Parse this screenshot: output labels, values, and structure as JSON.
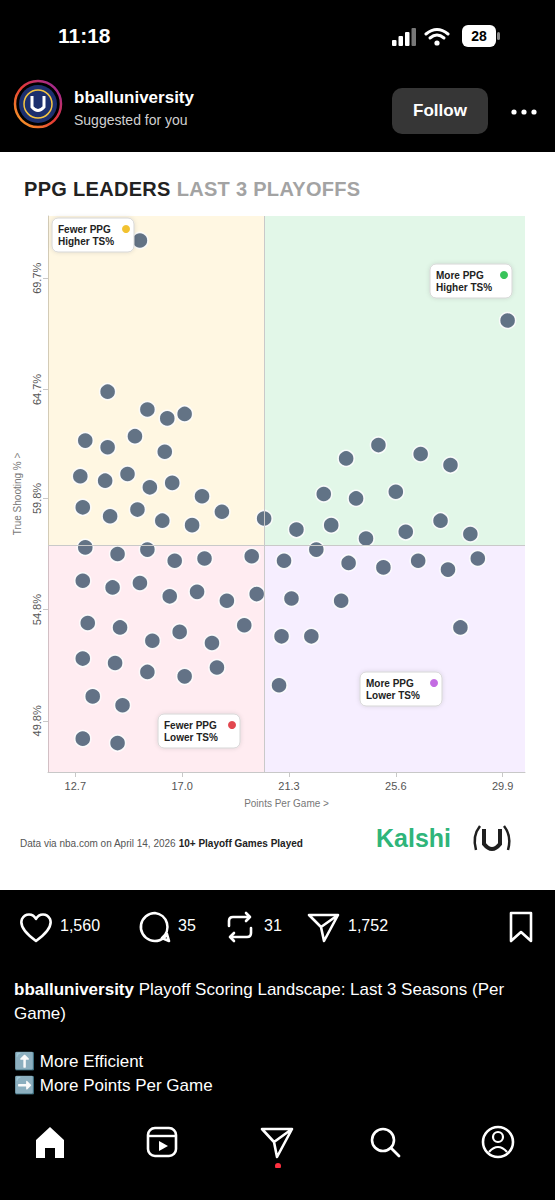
{
  "screen": {
    "status_bar": {
      "time": "11:18",
      "battery": "28"
    },
    "post_header": {
      "account": "bballuniversity",
      "subtitle": "Suggested for you",
      "button": "Follow"
    },
    "actions": {
      "likes": "1,560",
      "comments": "35",
      "reposts": "31",
      "shares": "1,752"
    },
    "caption": {
      "account": "bballuniversity",
      "text": "Playoff Scoring Landscape: Last 3 Seasons (Per Game)",
      "lines": [
        "⬆️ More Efficient",
        "➡️ More Points Per Game"
      ]
    }
  },
  "chart_data": {
    "type": "scatter",
    "title": "PPG LEADERS",
    "subtitle": "LAST 3 PLAYOFFS",
    "x_label": "Points Per Game >",
    "y_label": "True Shooting % >",
    "x": [
      15.3,
      30.1,
      14.0,
      15.6,
      16.4,
      17.1,
      13.1,
      14.0,
      15.1,
      16.3,
      12.9,
      13.9,
      14.8,
      15.7,
      16.6,
      17.8,
      13.0,
      14.1,
      15.2,
      16.2,
      17.4,
      18.6,
      13.1,
      14.4,
      15.6,
      16.7,
      17.9,
      13.0,
      14.2,
      15.3,
      16.5,
      17.6,
      18.8,
      13.2,
      14.5,
      15.8,
      16.9,
      18.2,
      19.5,
      13.0,
      14.3,
      15.6,
      17.1,
      18.4,
      13.4,
      14.6,
      13.0,
      14.4,
      23.6,
      24.9,
      26.6,
      27.8,
      22.7,
      24.0,
      25.6,
      20.3,
      21.6,
      23.0,
      24.4,
      26.0,
      27.4,
      28.6,
      19.8,
      21.1,
      22.4,
      23.7,
      25.1,
      26.5,
      27.7,
      28.9,
      20.0,
      21.4,
      23.4,
      28.2,
      21.0,
      22.2,
      20.9
    ],
    "values": [
      71.4,
      67.8,
      64.6,
      63.8,
      63.4,
      63.6,
      62.4,
      62.1,
      62.6,
      61.9,
      60.8,
      60.6,
      60.9,
      60.3,
      60.5,
      59.9,
      59.4,
      59.0,
      59.3,
      58.8,
      58.6,
      59.2,
      57.6,
      57.3,
      57.5,
      57.0,
      57.1,
      56.1,
      55.8,
      56.0,
      55.4,
      55.6,
      55.2,
      54.2,
      54.0,
      53.4,
      53.8,
      53.3,
      54.1,
      52.6,
      52.4,
      52.0,
      51.8,
      52.2,
      50.9,
      50.5,
      49.0,
      48.8,
      61.6,
      62.2,
      61.8,
      61.3,
      60.0,
      59.8,
      60.1,
      58.9,
      58.4,
      58.6,
      58.0,
      58.3,
      58.8,
      58.2,
      57.2,
      57.0,
      57.5,
      56.9,
      56.7,
      57.0,
      56.6,
      57.1,
      55.5,
      55.3,
      55.2,
      54.0,
      53.6,
      53.6,
      51.4
    ],
    "xlim": [
      11.6,
      30.8
    ],
    "ylim": [
      47.5,
      72.5
    ],
    "xticks": [
      12.7,
      {
        "value": 17.0,
        "label": "17.0"
      },
      21.3,
      25.6,
      29.9
    ],
    "yticks": [
      {
        "value": 49.8,
        "label": "49.8%"
      },
      {
        "value": 54.8,
        "label": "54.8%"
      },
      {
        "value": 59.8,
        "label": "59.8%"
      },
      {
        "value": 64.7,
        "label": "64.7%"
      },
      {
        "value": 69.7,
        "label": "69.7%"
      }
    ],
    "grid": false,
    "color": "#56677d",
    "marker": "circle",
    "reference_lines": {
      "x": 20.3,
      "y": 57.7
    },
    "annotations": [
      {
        "lines": [
          "Fewer PPG",
          "Higher TS%"
        ]
      },
      {
        "lines": [
          "More PPG",
          "Higher TS%"
        ]
      },
      {
        "lines": [
          "Fewer PPG",
          "Lower TS%"
        ]
      },
      {
        "lines": [
          "More PPG",
          "Lower TS%"
        ]
      }
    ],
    "note": "Data via nba.com on April 14, 2026",
    "note_bold": "10+ Playoff Games Played",
    "brand": "Kalshi"
  }
}
